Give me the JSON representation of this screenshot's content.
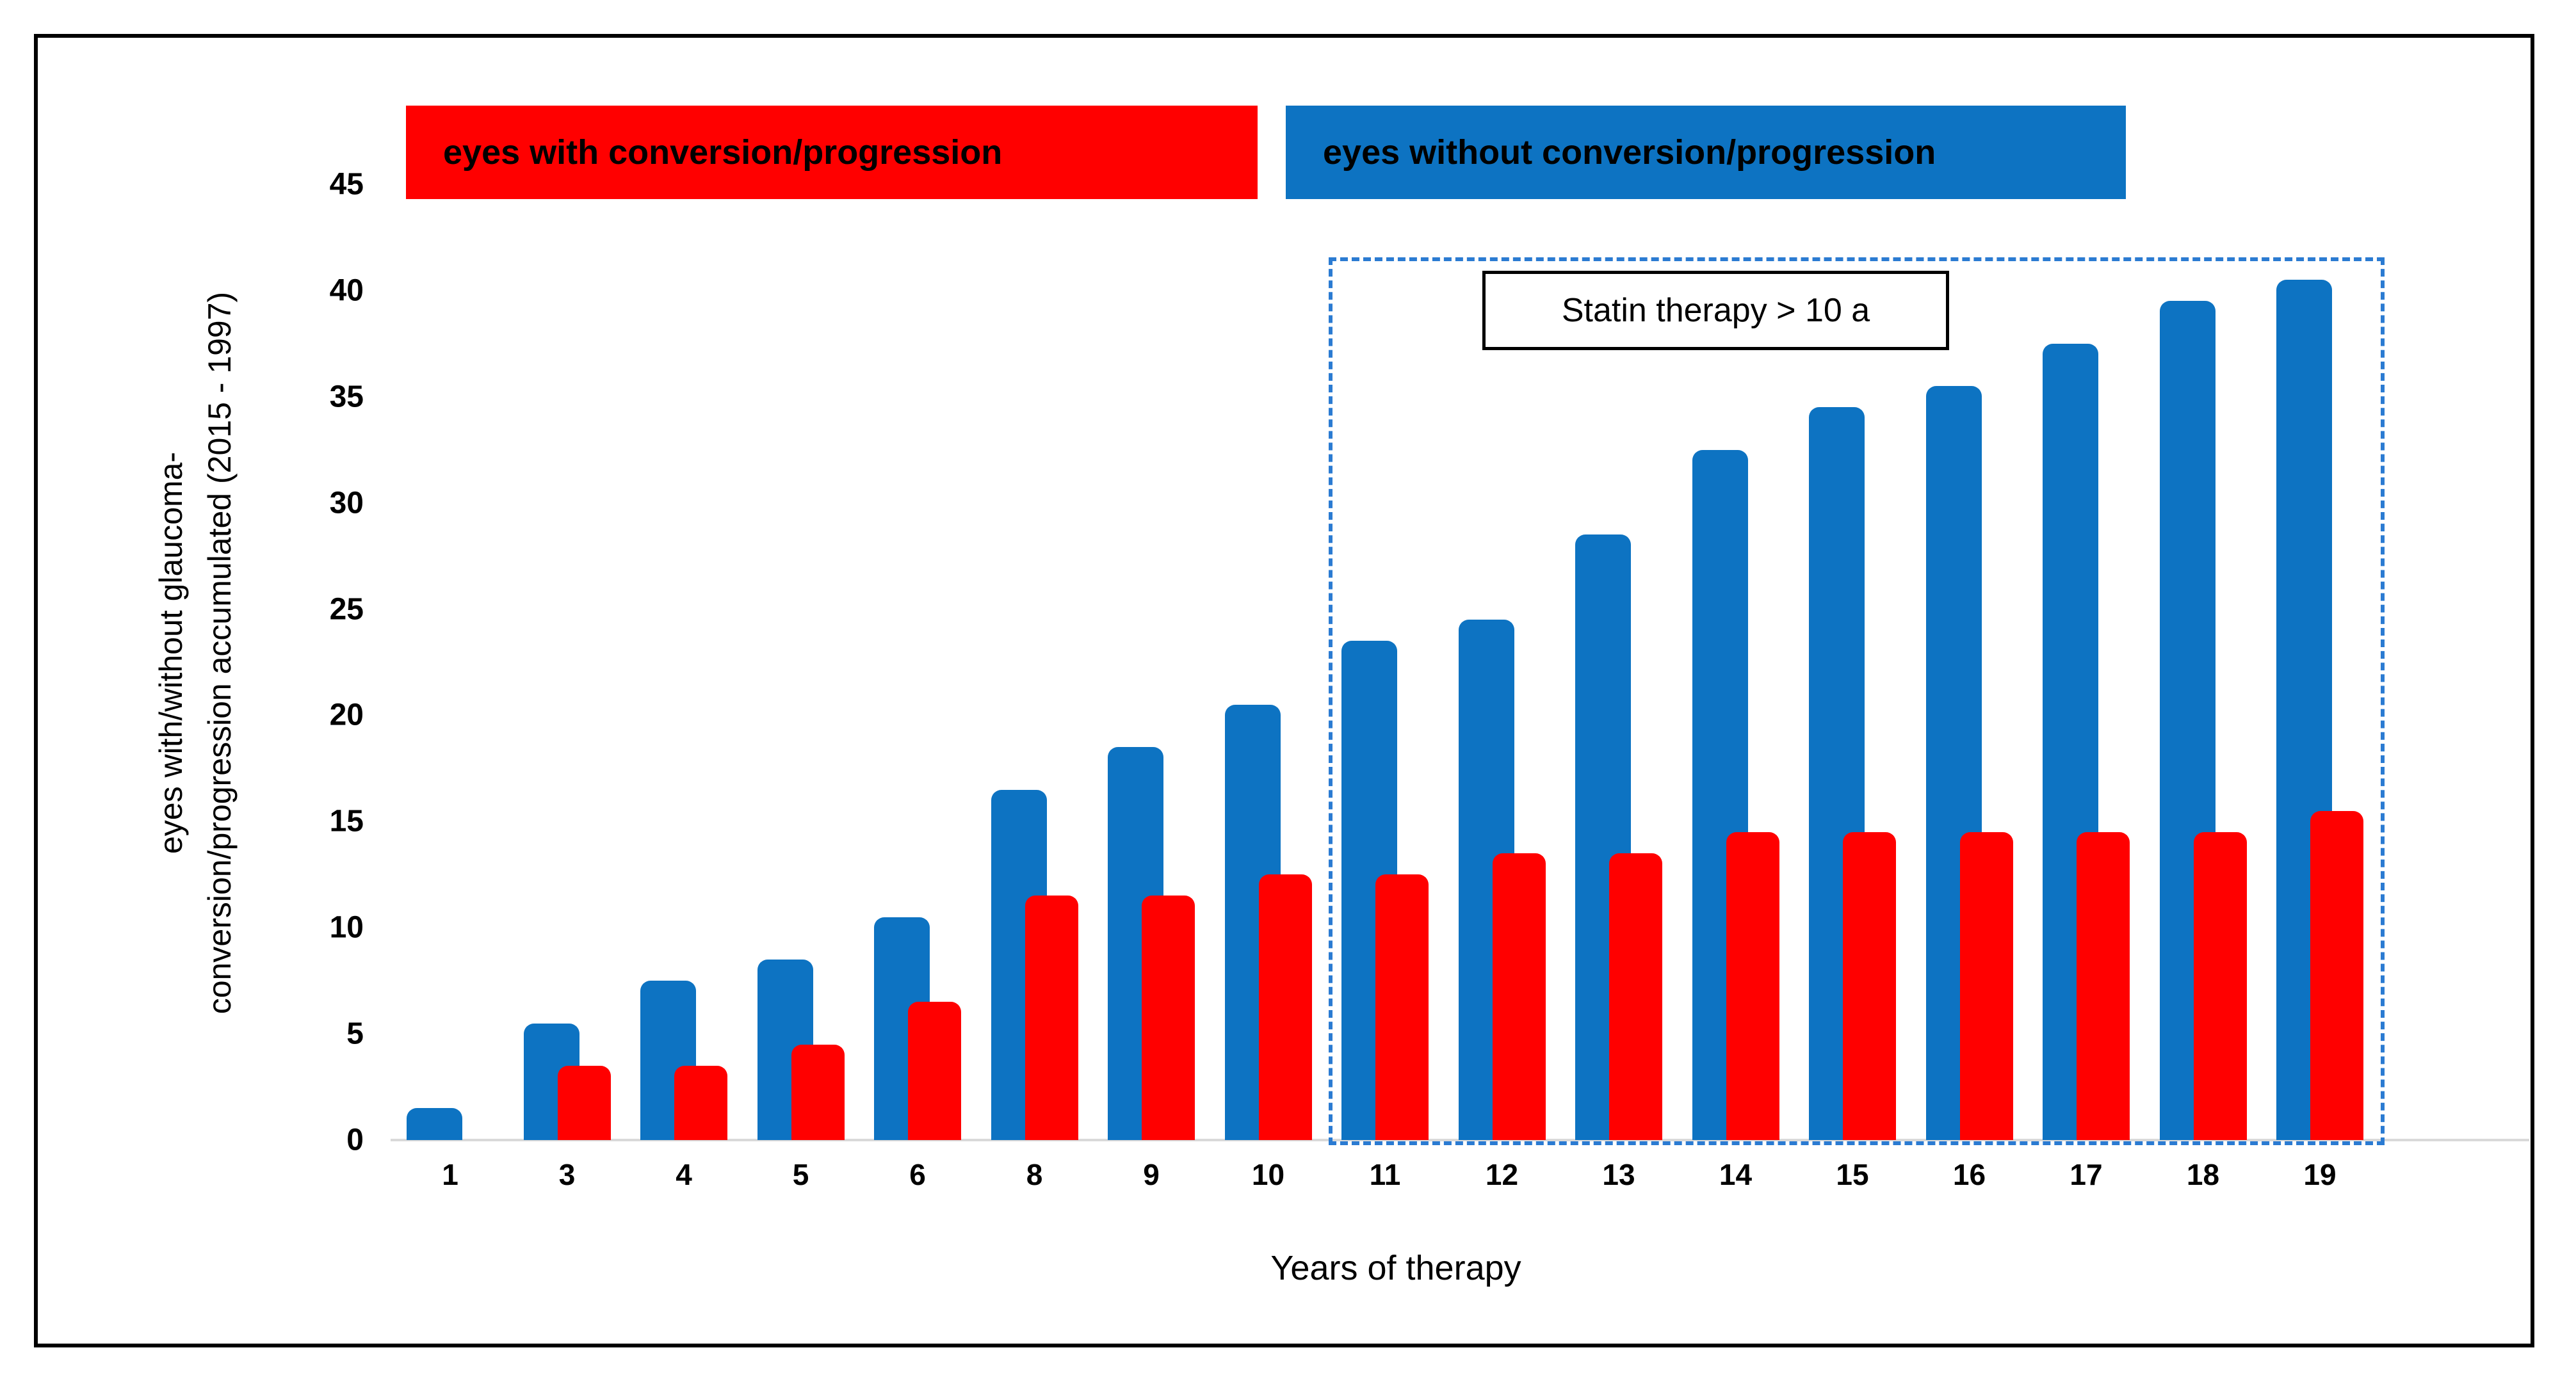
{
  "figure": {
    "legend": [
      {
        "label": "eyes with conversion/progression",
        "color": "#ff0000"
      },
      {
        "label": "eyes without conversion/progression",
        "color": "#0d73c2"
      }
    ],
    "y_axis": {
      "title_line1": "eyes with/without glaucoma-",
      "title_line2": "conversion/progression accumulated (2015 - 1997)",
      "ticks": [
        0,
        5,
        10,
        15,
        20,
        25,
        30,
        35,
        40,
        45
      ]
    },
    "x_axis": {
      "title": "Years of therapy"
    },
    "annotation": {
      "label": "Statin therapy > 10 a"
    }
  },
  "chart_data": {
    "type": "bar",
    "title": "",
    "xlabel": "Years of therapy",
    "ylabel": "eyes with/without glaucoma-conversion/progression accumulated (2015 - 1997)",
    "ylim": [
      0,
      45
    ],
    "grid": false,
    "legend_position": "top",
    "categories": [
      "1",
      "3",
      "4",
      "5",
      "6",
      "8",
      "9",
      "10",
      "11",
      "12",
      "13",
      "14",
      "15",
      "16",
      "17",
      "18",
      "19"
    ],
    "series": [
      {
        "name": "eyes with conversion/progression",
        "color": "#ff0000",
        "values": [
          0,
          3.5,
          3.5,
          4.5,
          6.5,
          11.5,
          11.5,
          12.5,
          12.5,
          13.5,
          13.5,
          14.5,
          14.5,
          14.5,
          14.5,
          14.5,
          15.5
        ]
      },
      {
        "name": "eyes without conversion/progression",
        "color": "#0d73c2",
        "values": [
          1.5,
          5.5,
          7.5,
          8.5,
          10.5,
          16.5,
          18.5,
          20.5,
          23.5,
          24.5,
          28.5,
          32.5,
          34.5,
          35.5,
          37.5,
          39.5,
          40.5
        ]
      }
    ],
    "annotation": {
      "text": "Statin therapy > 10 a",
      "applies_to_categories": "11-19",
      "style": "blue dashed rectangle"
    },
    "colors": {
      "bar_blue": "#0d73c2",
      "bar_red": "#ff0000",
      "dashed_rect": "#2b7bd2",
      "axis_line": "#d9d9d9",
      "border": "#000000"
    }
  }
}
